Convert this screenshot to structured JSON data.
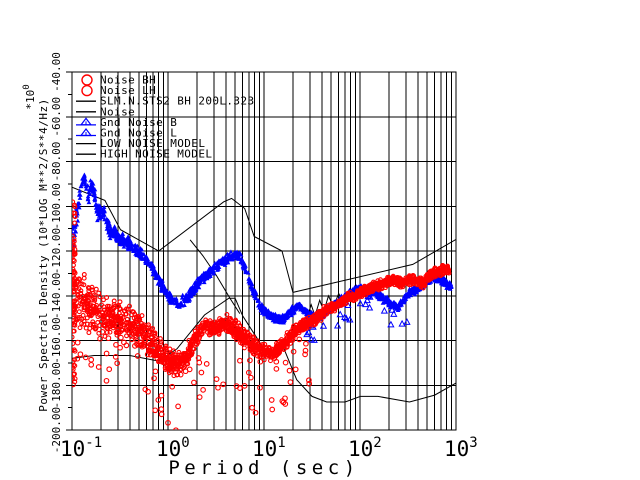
{
  "window": {
    "background": "#ffffff"
  },
  "chart_data": {
    "type": "scatter",
    "title": "",
    "xlabel": "Period (sec)",
    "ylabel": "Power Spectral Density (10*LOG M**2/S**4/Hz)",
    "y_axis_multiplier_base": "*10",
    "y_axis_multiplier_exp": "0",
    "x_scale": "log",
    "xlim": [
      0.1,
      1000
    ],
    "ylim": [
      -200,
      -40
    ],
    "x_tick_base": "10",
    "x_tick_exponents": [
      "-1",
      "0",
      "1",
      "2",
      "3"
    ],
    "y_tick_values": [
      -40,
      -60,
      -80,
      -100,
      -120,
      -140,
      -160,
      -180,
      -200
    ],
    "y_tick_labels": [
      "-40.00",
      "-60.00",
      "-80.00",
      "-100.00",
      "-120.00",
      "-140.00",
      "-160.00",
      "-180.00",
      "-200.00"
    ],
    "grid": {
      "vertical": "log minor + major, full height",
      "horizontal": "major 20 dB steps",
      "color": "#000000"
    },
    "colors": {
      "red_series": "#ff0000",
      "blue_series": "#0000ff",
      "models": "#000000",
      "background": "#ffffff"
    },
    "legend": {
      "position": "top-left",
      "entries": [
        {
          "marker": "circle",
          "color": "#ff0000",
          "label": "Noise BH"
        },
        {
          "marker": "circle",
          "color": "#ff0000",
          "label": "Noise LH"
        },
        {
          "marker": "line",
          "color": "#000000",
          "label": "SLM.N.STS2 BH  200L.323"
        },
        {
          "marker": "line",
          "color": "#000000",
          "label": "Noise"
        },
        {
          "marker": "triangle",
          "color": "#0000ff",
          "label": "Gnd Noise B"
        },
        {
          "marker": "triangle",
          "color": "#0000ff",
          "label": "Gnd Noise L"
        },
        {
          "marker": "line",
          "color": "#000000",
          "label": "LOW NOISE MODEL"
        },
        {
          "marker": "line",
          "color": "#000000",
          "label": "HIGH NOISE MODEL"
        }
      ]
    },
    "series": [
      {
        "name": "Noise BH / Noise LH",
        "marker": "circle",
        "color": "#ff0000",
        "points_estimate": 1900,
        "band_anchors": [
          [
            0.1,
            -138,
            22
          ],
          [
            0.115,
            -140,
            16
          ],
          [
            0.13,
            -142,
            14
          ],
          [
            0.15,
            -145,
            12
          ],
          [
            0.18,
            -146,
            12
          ],
          [
            0.22,
            -149,
            10
          ],
          [
            0.27,
            -151,
            9
          ],
          [
            0.33,
            -150,
            8
          ],
          [
            0.4,
            -152,
            8
          ],
          [
            0.5,
            -155,
            8
          ],
          [
            0.63,
            -159,
            8
          ],
          [
            0.8,
            -164,
            7
          ],
          [
            1.0,
            -169,
            7
          ],
          [
            1.25,
            -171,
            6
          ],
          [
            1.6,
            -166,
            6
          ],
          [
            2.0,
            -158,
            5
          ],
          [
            2.5,
            -153,
            4.5
          ],
          [
            3.2,
            -155,
            4.5
          ],
          [
            4.0,
            -152,
            4.5
          ],
          [
            5.0,
            -155,
            4.5
          ],
          [
            6.3,
            -159,
            4.5
          ],
          [
            8.0,
            -163,
            4.5
          ],
          [
            10,
            -165,
            4.5
          ],
          [
            12.5,
            -166,
            4
          ],
          [
            16,
            -162,
            4
          ],
          [
            20,
            -157,
            3.5
          ],
          [
            25,
            -153.5,
            3
          ],
          [
            32,
            -151,
            3
          ],
          [
            40,
            -148,
            3
          ],
          [
            55,
            -144.5,
            2.7
          ],
          [
            75,
            -141,
            2.5
          ],
          [
            100,
            -139,
            2.5
          ],
          [
            130,
            -136.5,
            2.5
          ],
          [
            170,
            -134.5,
            2.5
          ],
          [
            220,
            -133,
            2.5
          ],
          [
            280,
            -134.5,
            2.5
          ],
          [
            350,
            -132.5,
            2.5
          ],
          [
            450,
            -134.5,
            2.5
          ],
          [
            550,
            -130.5,
            2.5
          ],
          [
            700,
            -129,
            2.5
          ],
          [
            850,
            -128,
            2.5
          ]
        ],
        "left_spike_column": {
          "t_range": [
            0.1,
            0.108
          ],
          "db_range": [
            -97,
            -180
          ],
          "count": 70
        },
        "outliers_below": {
          "t_range": [
            0.11,
            30
          ],
          "db_offset": [
            4,
            30
          ],
          "count": 85
        }
      },
      {
        "name": "Gnd Noise B / Gnd Noise L",
        "marker": "triangle",
        "color": "#0000ff",
        "points_estimate": 1600,
        "band_anchors": [
          [
            0.1,
            -117,
            5
          ],
          [
            0.112,
            -105,
            7
          ],
          [
            0.123,
            -91,
            5
          ],
          [
            0.135,
            -87,
            3
          ],
          [
            0.148,
            -96,
            5
          ],
          [
            0.163,
            -90,
            4
          ],
          [
            0.185,
            -103,
            5
          ],
          [
            0.21,
            -102,
            4
          ],
          [
            0.25,
            -111,
            4
          ],
          [
            0.31,
            -114,
            3.5
          ],
          [
            0.4,
            -117,
            3
          ],
          [
            0.5,
            -121,
            3
          ],
          [
            0.63,
            -125,
            3
          ],
          [
            0.8,
            -133,
            3
          ],
          [
            1.0,
            -140,
            2.8
          ],
          [
            1.25,
            -144,
            2.8
          ],
          [
            1.6,
            -141,
            2.8
          ],
          [
            2.0,
            -135,
            2.8
          ],
          [
            2.5,
            -131,
            2.5
          ],
          [
            3.2,
            -127,
            2.5
          ],
          [
            4.0,
            -124,
            2.5
          ],
          [
            5.0,
            -121.5,
            2.5
          ],
          [
            5.8,
            -123,
            2.5
          ],
          [
            7.0,
            -133,
            2.5
          ],
          [
            8.5,
            -142,
            2.5
          ],
          [
            10,
            -147,
            2.3
          ],
          [
            13,
            -150,
            2.3
          ],
          [
            16,
            -151,
            2.3
          ],
          [
            19,
            -147,
            2.3
          ],
          [
            23,
            -144,
            2.3
          ],
          [
            28,
            -148,
            2.3
          ],
          [
            35,
            -150,
            2.3
          ],
          [
            45,
            -147,
            2.3
          ],
          [
            60,
            -143,
            2.3
          ],
          [
            80,
            -139,
            2.3
          ],
          [
            100,
            -137,
            2.3
          ],
          [
            130,
            -138,
            2.3
          ],
          [
            160,
            -140,
            2.3
          ],
          [
            200,
            -143,
            2.3
          ],
          [
            250,
            -145,
            2.3
          ],
          [
            320,
            -139,
            2.3
          ],
          [
            400,
            -137,
            2.3
          ],
          [
            500,
            -133,
            2.3
          ],
          [
            600,
            -131.5,
            2.3
          ],
          [
            750,
            -134,
            2.3
          ],
          [
            900,
            -135.5,
            2.3
          ]
        ],
        "outliers_below": {
          "t_range": [
            25,
            320
          ],
          "db_offset": [
            2,
            12
          ],
          "count": 28
        }
      }
    ],
    "models": {
      "high_noise_model": [
        [
          0.1,
          -91.5
        ],
        [
          0.22,
          -97.4
        ],
        [
          0.32,
          -110.5
        ],
        [
          0.8,
          -120.0
        ],
        [
          3.8,
          -98.0
        ],
        [
          4.6,
          -96.5
        ],
        [
          6.3,
          -101.0
        ],
        [
          7.9,
          -113.5
        ],
        [
          15.4,
          -120.0
        ],
        [
          20.0,
          -138.5
        ],
        [
          354.8,
          -126.0
        ],
        [
          1000,
          -114.8
        ]
      ],
      "low_noise_model": [
        [
          0.1,
          -168.0
        ],
        [
          0.17,
          -166.7
        ],
        [
          0.4,
          -166.7
        ],
        [
          0.8,
          -169.2
        ],
        [
          1.24,
          -163.7
        ],
        [
          2.4,
          -148.6
        ],
        [
          4.3,
          -141.1
        ],
        [
          5.0,
          -141.1
        ],
        [
          6.0,
          -149.0
        ],
        [
          10.0,
          -163.8
        ],
        [
          12.0,
          -166.2
        ],
        [
          15.6,
          -162.1
        ],
        [
          21.9,
          -177.5
        ],
        [
          31.6,
          -185.0
        ],
        [
          45.0,
          -187.5
        ],
        [
          70.0,
          -187.5
        ],
        [
          101.0,
          -185.0
        ],
        [
          154.0,
          -185.0
        ],
        [
          328.0,
          -187.5
        ],
        [
          600.0,
          -184.4
        ],
        [
          1000,
          -179.0
        ]
      ],
      "reference_segments": [
        [
          [
            1.7,
            -115
          ],
          [
            2.3,
            -122
          ],
          [
            3.2,
            -131
          ],
          [
            4.4,
            -141
          ],
          [
            5.6,
            -148
          ]
        ],
        [
          [
            28,
            -150
          ],
          [
            31,
            -144
          ],
          [
            34,
            -149
          ],
          [
            38,
            -142
          ],
          [
            42,
            -147
          ],
          [
            47,
            -140
          ],
          [
            53,
            -145
          ],
          [
            60,
            -139
          ],
          [
            67,
            -143
          ],
          [
            75,
            -138
          ]
        ]
      ]
    }
  }
}
